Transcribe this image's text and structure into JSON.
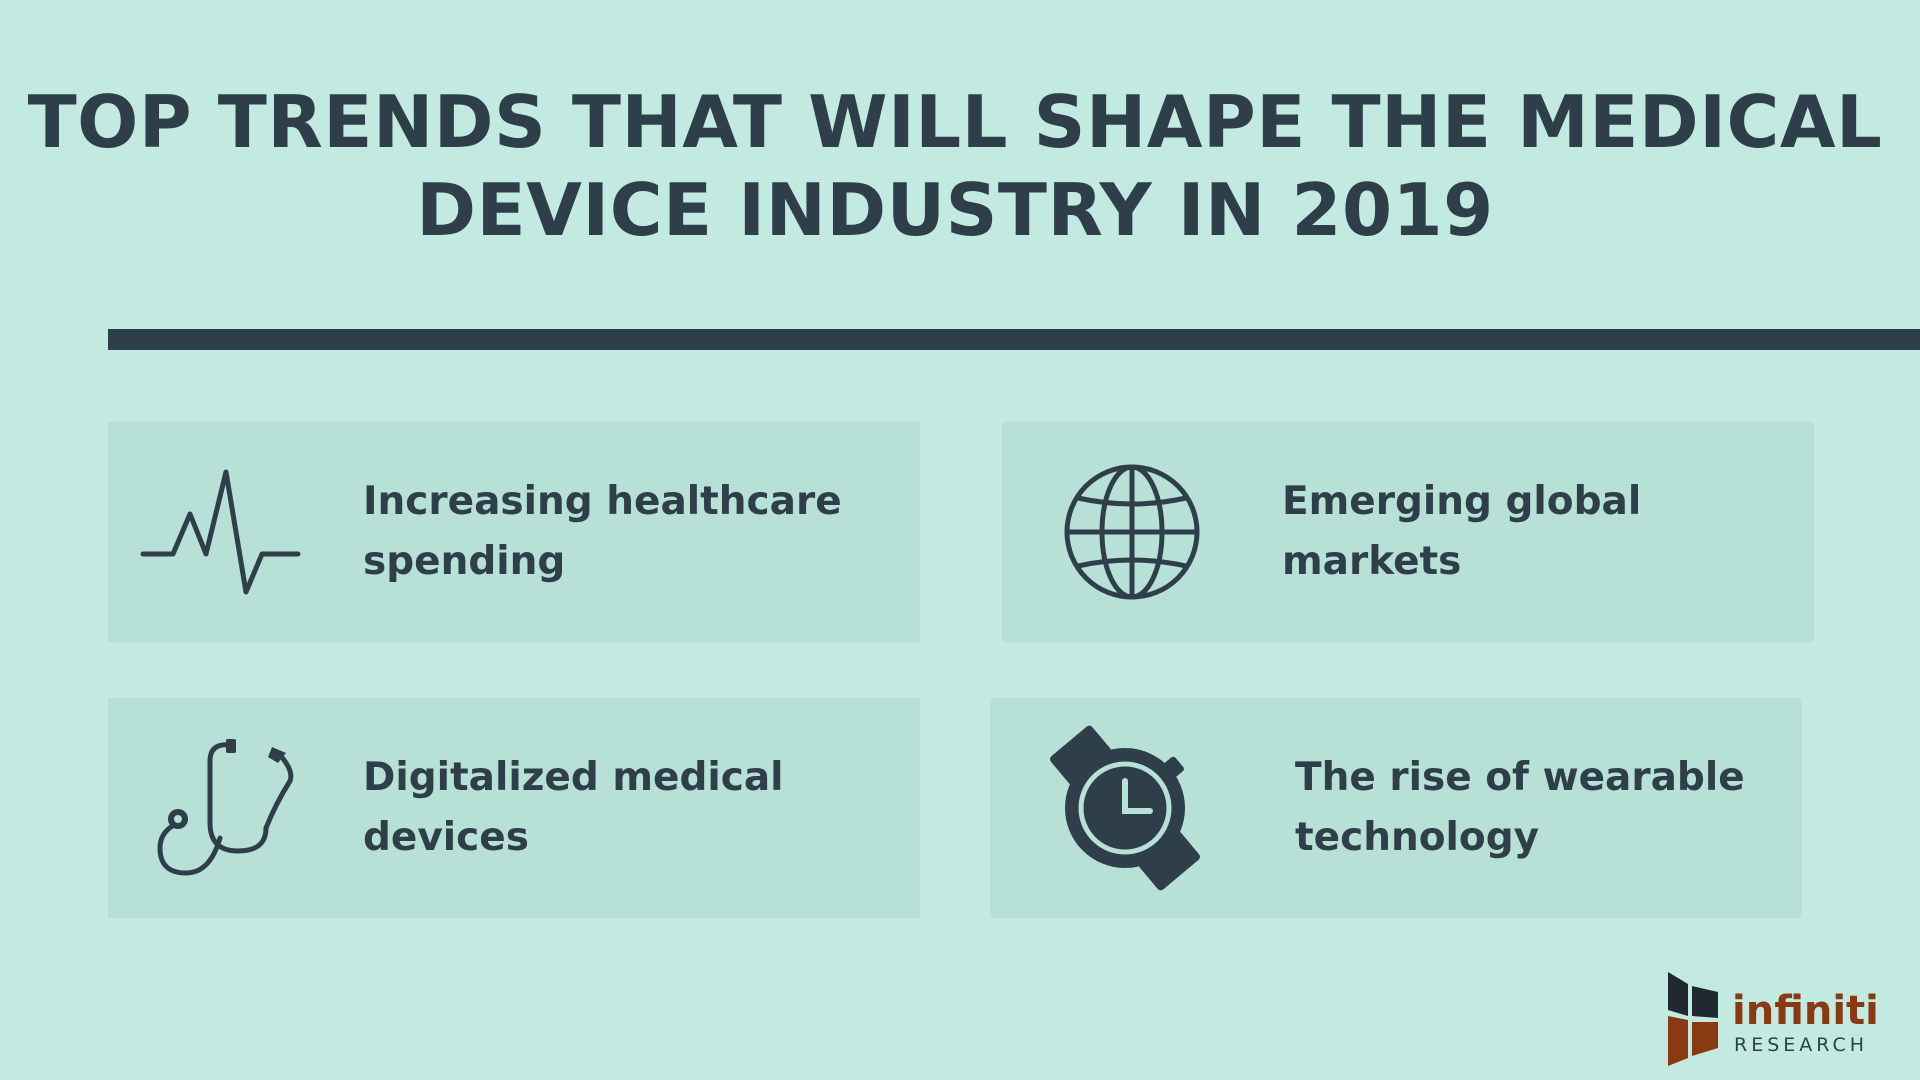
{
  "title": {
    "line1": "TOP TRENDS THAT WILL SHAPE THE MEDICAL",
    "line2": "DEVICE INDUSTRY IN 2019"
  },
  "trends": [
    {
      "label": "Increasing healthcare spending",
      "icon": "heartbeat-icon"
    },
    {
      "label": "Emerging global markets",
      "icon": "globe-icon"
    },
    {
      "label": "Digitalized medical devices",
      "icon": "stethoscope-icon"
    },
    {
      "label": "The rise of wearable technology",
      "icon": "wristwatch-icon"
    }
  ],
  "logo": {
    "word": "infiniti",
    "sub": "RESEARCH"
  },
  "colors": {
    "background": "#c2eae1",
    "card": "#b7e0d7",
    "text": "#2e3f4a",
    "logo_accent": "#8a3a12"
  }
}
